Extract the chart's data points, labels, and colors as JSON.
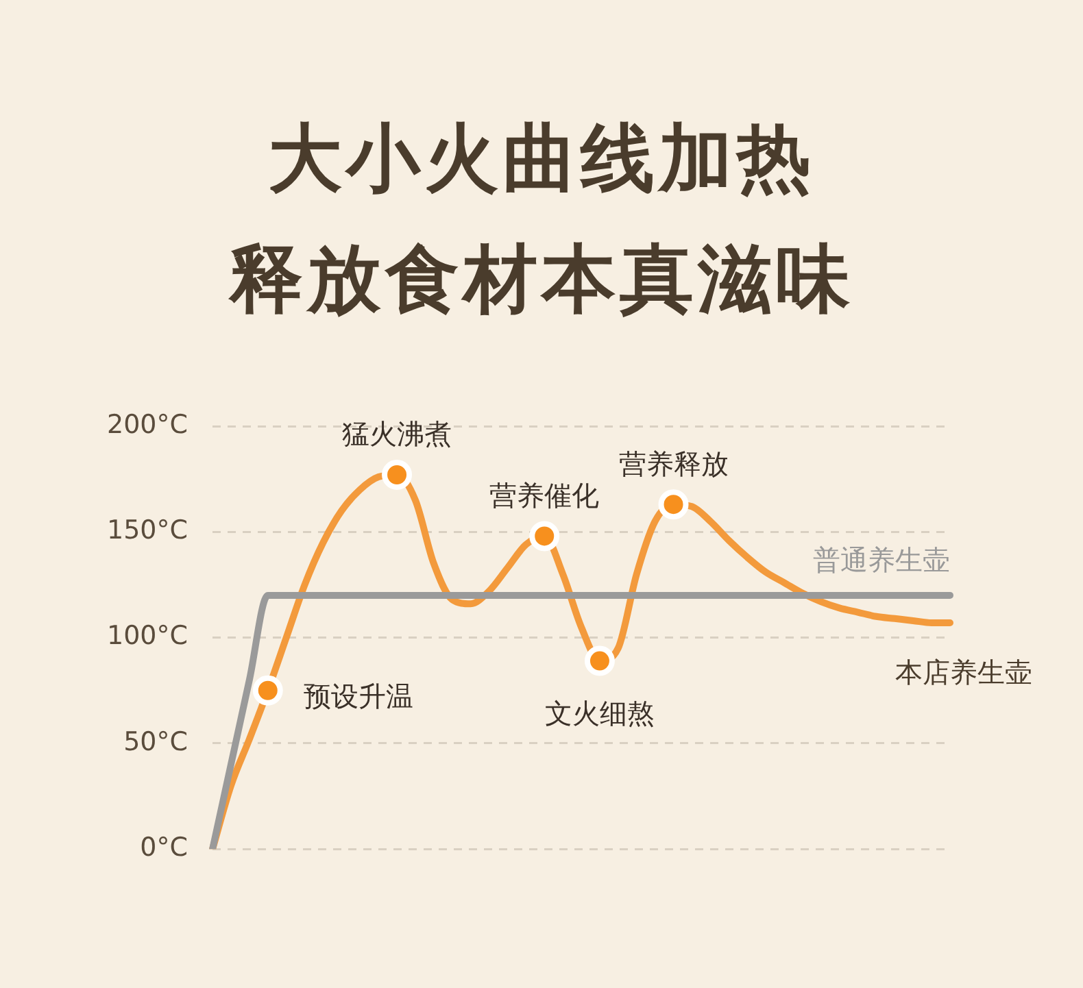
{
  "chart_data": {
    "type": "line",
    "title": "大小火曲线加热",
    "subtitle": "释放食材本真滋味",
    "categories": [
      null,
      null,
      null,
      null,
      null,
      null,
      null,
      null,
      null,
      null,
      null,
      null,
      null,
      null,
      null,
      null,
      null,
      null,
      null,
      null,
      null,
      null,
      null,
      null,
      null,
      null,
      null,
      null,
      null,
      null,
      null,
      null,
      null,
      null,
      null,
      null,
      null,
      null,
      null,
      null,
      null
    ],
    "series": [
      {
        "name": "普通养生壶",
        "color": "#9a9a9a",
        "values": [
          0,
          40,
          80,
          120,
          120,
          120,
          120,
          120,
          120,
          120,
          120,
          120,
          120,
          120,
          120,
          120,
          120,
          120,
          120,
          120,
          120,
          120,
          120,
          120,
          120,
          120,
          120,
          120,
          120,
          120,
          120,
          120,
          120,
          120,
          120,
          120,
          120,
          120,
          120,
          120,
          120
        ]
      },
      {
        "name": "本店养生壶",
        "color": "#f39a3c",
        "values": [
          0,
          30,
          52,
          75,
          100,
          125,
          145,
          160,
          170,
          176,
          177,
          165,
          135,
          118,
          116,
          122,
          133,
          144,
          148,
          130,
          105,
          89,
          95,
          130,
          155,
          163,
          162,
          155,
          146,
          138,
          131,
          126,
          121,
          117,
          114,
          112,
          110,
          109,
          108,
          107,
          107
        ]
      },
      {
        "type": "scatter",
        "marker": "circle",
        "color": "#f7901e",
        "values": [
          null,
          null,
          null,
          75,
          null,
          null,
          null,
          null,
          null,
          null,
          177,
          null,
          null,
          null,
          null,
          null,
          null,
          null,
          148,
          null,
          null,
          89,
          null,
          null,
          null,
          163,
          null,
          null,
          null,
          null,
          null,
          null,
          null,
          null,
          null,
          null,
          null,
          null,
          null,
          null,
          null
        ]
      }
    ],
    "annotations": [
      "预设升温",
      "猛火沸煮",
      "营养催化",
      "文火细熬",
      "营养释放"
    ],
    "ylim": [
      0,
      200
    ],
    "yticks": [
      {
        "value": 0,
        "label": "0°C"
      },
      {
        "value": 50,
        "label": "50°C"
      },
      {
        "value": 100,
        "label": "100°C"
      },
      {
        "value": 150,
        "label": "150°C"
      },
      {
        "value": 200,
        "label": "200°C"
      }
    ],
    "grid": "y",
    "legend": false,
    "marker": "none",
    "line_style": "solid"
  }
}
